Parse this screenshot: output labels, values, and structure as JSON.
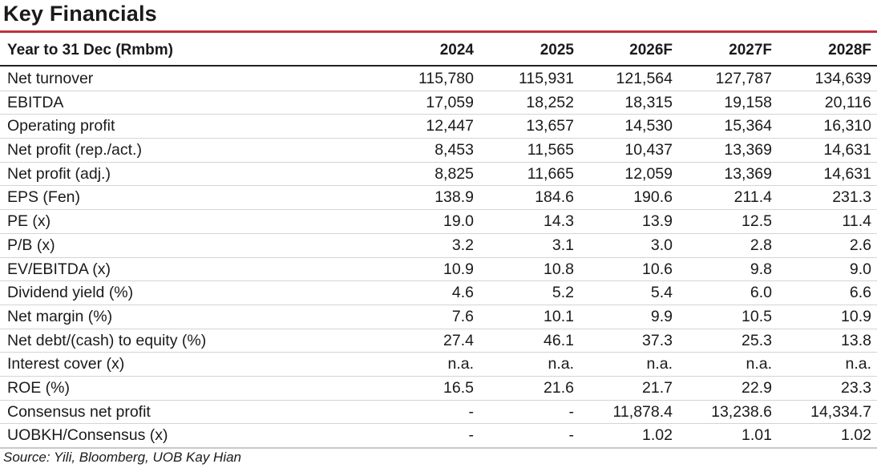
{
  "title": "Key Financials",
  "header": {
    "label": "Year to 31 Dec (Rmbm)",
    "years": [
      "2024",
      "2025",
      "2026F",
      "2027F",
      "2028F"
    ]
  },
  "rows": [
    {
      "label": "Net turnover",
      "values": [
        "115,780",
        "115,931",
        "121,564",
        "127,787",
        "134,639"
      ]
    },
    {
      "label": "EBITDA",
      "values": [
        "17,059",
        "18,252",
        "18,315",
        "19,158",
        "20,116"
      ]
    },
    {
      "label": "Operating profit",
      "values": [
        "12,447",
        "13,657",
        "14,530",
        "15,364",
        "16,310"
      ]
    },
    {
      "label": "Net profit (rep./act.)",
      "values": [
        "8,453",
        "11,565",
        "10,437",
        "13,369",
        "14,631"
      ]
    },
    {
      "label": "Net profit (adj.)",
      "values": [
        "8,825",
        "11,665",
        "12,059",
        "13,369",
        "14,631"
      ]
    },
    {
      "label": "EPS (Fen)",
      "values": [
        "138.9",
        "184.6",
        "190.6",
        "211.4",
        "231.3"
      ]
    },
    {
      "label": "PE (x)",
      "values": [
        "19.0",
        "14.3",
        "13.9",
        "12.5",
        "11.4"
      ]
    },
    {
      "label": "P/B (x)",
      "values": [
        "3.2",
        "3.1",
        "3.0",
        "2.8",
        "2.6"
      ]
    },
    {
      "label": "EV/EBITDA (x)",
      "values": [
        "10.9",
        "10.8",
        "10.6",
        "9.8",
        "9.0"
      ]
    },
    {
      "label": "Dividend yield (%)",
      "values": [
        "4.6",
        "5.2",
        "5.4",
        "6.0",
        "6.6"
      ]
    },
    {
      "label": "Net margin (%)",
      "values": [
        "7.6",
        "10.1",
        "9.9",
        "10.5",
        "10.9"
      ]
    },
    {
      "label": "Net debt/(cash) to equity (%)",
      "values": [
        "27.4",
        "46.1",
        "37.3",
        "25.3",
        "13.8"
      ]
    },
    {
      "label": "Interest cover (x)",
      "values": [
        "n.a.",
        "n.a.",
        "n.a.",
        "n.a.",
        "n.a."
      ]
    },
    {
      "label": "ROE (%)",
      "values": [
        "16.5",
        "21.6",
        "21.7",
        "22.9",
        "23.3"
      ]
    },
    {
      "label": "Consensus net profit",
      "values": [
        "-",
        "-",
        "11,878.4",
        "13,238.6",
        "14,334.7"
      ]
    },
    {
      "label": "UOBKH/Consensus (x)",
      "values": [
        "-",
        "-",
        "1.02",
        "1.01",
        "1.02"
      ]
    }
  ],
  "source": "Source: Yili, Bloomberg, UOB Kay Hian",
  "colors": {
    "accent_rule": "#c0313c",
    "row_divider": "#d4d4d4"
  }
}
